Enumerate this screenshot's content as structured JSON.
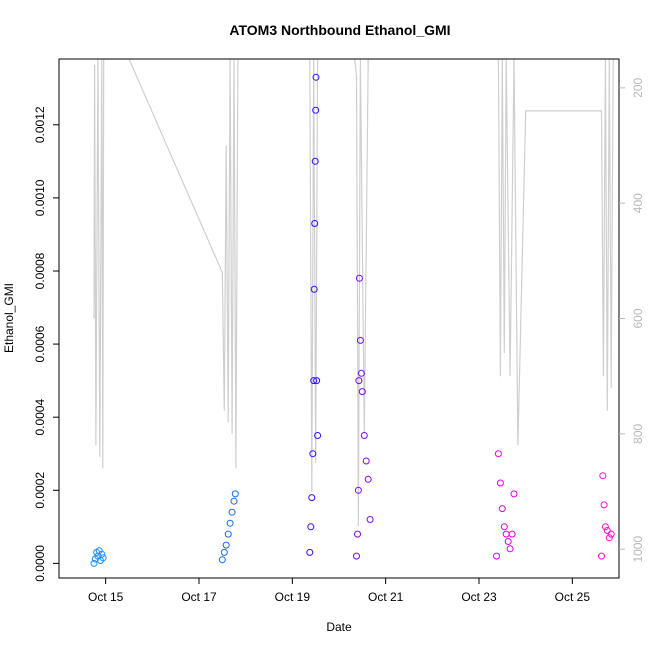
{
  "chart_data": {
    "type": "scatter",
    "title": "ATOM3 Northbound Ethanol_GMI",
    "xlabel": "Date",
    "ylabel": "Ethanol_GMI",
    "xlim": [
      "2016-10-14T00:00",
      "2016-10-26T00:00"
    ],
    "ylim": [
      -4e-05,
      0.00138
    ],
    "x_tick_labels": [
      "Oct 15",
      "Oct 17",
      "Oct 19",
      "Oct 21",
      "Oct 23",
      "Oct 25"
    ],
    "x_ticks": [
      "2016-10-15",
      "2016-10-17",
      "2016-10-19",
      "2016-10-21",
      "2016-10-23",
      "2016-10-25"
    ],
    "y_ticks": [
      0,
      0.0002,
      0.0004,
      0.0006,
      0.0008,
      0.001,
      0.0012
    ],
    "y_tick_labels": [
      "0.0000",
      "0.0002",
      "0.0004",
      "0.0006",
      "0.0008",
      "0.0010",
      "0.0012"
    ],
    "y2_reversed": true,
    "y2lim": [
      150,
      1050
    ],
    "y2_ticks": [
      200,
      400,
      600,
      800,
      1000
    ],
    "y2_tick_labels": [
      "200",
      "400",
      "600",
      "800",
      "1000"
    ],
    "colors": {
      "pressure_line": "#cfcfcf",
      "axis": "#000000",
      "secondary_axis": "#b8b8b8"
    },
    "series": [
      {
        "color": "#1e90ff",
        "points": [
          [
            "2016-10-14T18:00",
            0.0
          ],
          [
            "2016-10-14T18:40",
            1.2e-05
          ],
          [
            "2016-10-14T19:20",
            3e-05
          ],
          [
            "2016-10-14T20:00",
            2e-05
          ],
          [
            "2016-10-14T20:40",
            3.5e-05
          ],
          [
            "2016-10-14T21:20",
            8e-06
          ],
          [
            "2016-10-14T22:00",
            2.5e-05
          ],
          [
            "2016-10-14T22:40",
            1.5e-05
          ]
        ]
      },
      {
        "color": "#1a6ae8",
        "points": [
          [
            "2016-10-17T12:00",
            1e-05
          ],
          [
            "2016-10-17T13:00",
            3e-05
          ],
          [
            "2016-10-17T14:00",
            5e-05
          ],
          [
            "2016-10-17T15:00",
            8e-05
          ],
          [
            "2016-10-17T16:00",
            0.00011
          ],
          [
            "2016-10-17T17:00",
            0.00014
          ],
          [
            "2016-10-17T18:00",
            0.00017
          ],
          [
            "2016-10-17T18:40",
            0.00019
          ]
        ]
      },
      {
        "color": "#2f10ff",
        "points": [
          [
            "2016-10-19T09:00",
            3e-05
          ],
          [
            "2016-10-19T09:30",
            0.0001
          ],
          [
            "2016-10-19T10:00",
            0.00018
          ],
          [
            "2016-10-19T10:30",
            0.0003
          ],
          [
            "2016-10-19T11:00",
            0.0005
          ],
          [
            "2016-10-19T11:15",
            0.00075
          ],
          [
            "2016-10-19T11:30",
            0.00093
          ],
          [
            "2016-10-19T11:45",
            0.0011
          ],
          [
            "2016-10-19T12:00",
            0.00124
          ],
          [
            "2016-10-19T12:10",
            0.00133
          ],
          [
            "2016-10-19T12:30",
            0.0005
          ],
          [
            "2016-10-19T13:00",
            0.00035
          ]
        ]
      },
      {
        "color": "#7a0cf0",
        "points": [
          [
            "2016-10-20T09:00",
            2e-05
          ],
          [
            "2016-10-20T09:30",
            8e-05
          ],
          [
            "2016-10-20T10:00",
            0.0002
          ],
          [
            "2016-10-20T10:15",
            0.0005
          ],
          [
            "2016-10-20T10:30",
            0.00078
          ],
          [
            "2016-10-20T11:00",
            0.00061
          ],
          [
            "2016-10-20T11:30",
            0.00052
          ],
          [
            "2016-10-20T12:00",
            0.00047
          ],
          [
            "2016-10-20T13:00",
            0.00035
          ],
          [
            "2016-10-20T14:00",
            0.00028
          ],
          [
            "2016-10-20T15:00",
            0.00023
          ],
          [
            "2016-10-20T16:00",
            0.00012
          ]
        ]
      },
      {
        "color": "#e000ee",
        "points": [
          [
            "2016-10-23T09:00",
            2e-05
          ],
          [
            "2016-10-23T10:00",
            0.0003
          ],
          [
            "2016-10-23T11:00",
            0.00022
          ],
          [
            "2016-10-23T12:00",
            0.00015
          ],
          [
            "2016-10-23T13:00",
            0.0001
          ],
          [
            "2016-10-23T14:00",
            8e-05
          ],
          [
            "2016-10-23T15:00",
            6e-05
          ],
          [
            "2016-10-23T16:00",
            4e-05
          ],
          [
            "2016-10-23T17:00",
            8e-05
          ],
          [
            "2016-10-23T18:00",
            0.00019
          ]
        ]
      },
      {
        "color": "#ff10c8",
        "points": [
          [
            "2016-10-25T15:00",
            2e-05
          ],
          [
            "2016-10-25T15:40",
            0.00024
          ],
          [
            "2016-10-25T16:20",
            0.00016
          ],
          [
            "2016-10-25T17:00",
            0.0001
          ],
          [
            "2016-10-25T18:00",
            9e-05
          ],
          [
            "2016-10-25T19:00",
            7e-05
          ],
          [
            "2016-10-25T20:00",
            8e-05
          ]
        ]
      }
    ],
    "secondary_series": {
      "points": [
        [
          "2016-10-14T18:00",
          600
        ],
        [
          "2016-10-14T18:20",
          160
        ],
        [
          "2016-10-14T19:00",
          820
        ],
        [
          "2016-10-14T20:00",
          150
        ],
        [
          "2016-10-14T21:00",
          840
        ],
        [
          "2016-10-14T22:00",
          150
        ],
        [
          "2016-10-14T22:30",
          860
        ],
        [
          "2016-10-14T23:00",
          150
        ],
        [
          "2016-10-15T12:00",
          150
        ],
        [
          "2016-10-17T12:00",
          520
        ],
        [
          "2016-10-17T13:00",
          760
        ],
        [
          "2016-10-17T14:00",
          300
        ],
        [
          "2016-10-17T15:00",
          780
        ],
        [
          "2016-10-17T16:00",
          150
        ],
        [
          "2016-10-17T17:00",
          800
        ],
        [
          "2016-10-17T18:00",
          150
        ],
        [
          "2016-10-17T19:00",
          860
        ],
        [
          "2016-10-17T20:00",
          150
        ],
        [
          "2016-10-19T09:00",
          150
        ],
        [
          "2016-10-19T10:00",
          900
        ],
        [
          "2016-10-19T11:00",
          150
        ],
        [
          "2016-10-19T12:00",
          850
        ],
        [
          "2016-10-19T13:00",
          150
        ],
        [
          "2016-10-20T08:00",
          150
        ],
        [
          "2016-10-20T09:00",
          180
        ],
        [
          "2016-10-20T10:00",
          960
        ],
        [
          "2016-10-20T11:00",
          150
        ],
        [
          "2016-10-20T13:00",
          800
        ],
        [
          "2016-10-20T15:00",
          150
        ],
        [
          "2016-10-23T10:00",
          150
        ],
        [
          "2016-10-23T11:00",
          700
        ],
        [
          "2016-10-23T12:00",
          150
        ],
        [
          "2016-10-23T13:00",
          660
        ],
        [
          "2016-10-23T14:00",
          150
        ],
        [
          "2016-10-23T16:00",
          700
        ],
        [
          "2016-10-23T18:00",
          150
        ],
        [
          "2016-10-23T20:00",
          820
        ],
        [
          "2016-10-24T00:00",
          240
        ],
        [
          "2016-10-25T15:00",
          240
        ],
        [
          "2016-10-25T16:00",
          700
        ],
        [
          "2016-10-25T17:00",
          150
        ],
        [
          "2016-10-25T18:00",
          760
        ],
        [
          "2016-10-25T19:00",
          150
        ],
        [
          "2016-10-25T20:00",
          720
        ],
        [
          "2016-10-25T21:00",
          150
        ]
      ]
    }
  }
}
